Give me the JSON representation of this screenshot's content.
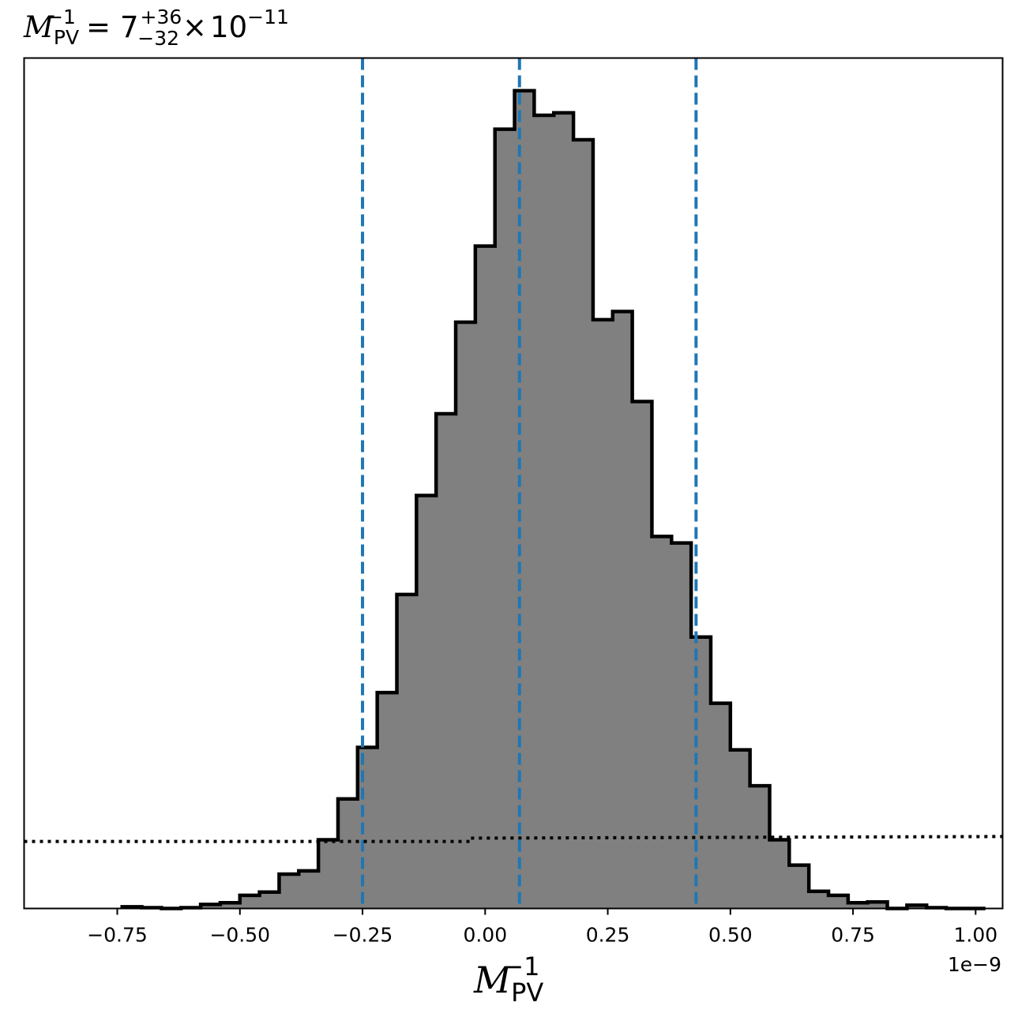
{
  "chart_data": {
    "type": "bar",
    "title": {
      "symbol": "M",
      "symbol_sub": "PV",
      "symbol_sup": "−1",
      "equals": "=",
      "value": "7",
      "upper_err": "+36",
      "lower_err": "−32",
      "times": "×",
      "base": "10",
      "exponent": "−11"
    },
    "xlabel": {
      "symbol": "M",
      "sub": "PV",
      "sup": "−1"
    },
    "ylabel": "",
    "x_offset_label": "1e−9",
    "x_units_scale": "1e-9",
    "xlim": [
      -0.94,
      1.055
    ],
    "ylim": [
      0,
      1.04
    ],
    "x_ticks": [
      -0.75,
      -0.5,
      -0.25,
      0.0,
      0.25,
      0.5,
      0.75,
      1.0
    ],
    "x_tick_labels": [
      "−0.75",
      "−0.50",
      "−0.25",
      "0.00",
      "0.25",
      "0.50",
      "0.75",
      "1.00"
    ],
    "y_ticks_shown": false,
    "histogram": {
      "bin_start": -0.74,
      "bin_width": 0.04,
      "values": [
        0.002,
        0.001,
        0.0,
        0.001,
        0.005,
        0.007,
        0.016,
        0.02,
        0.042,
        0.046,
        0.084,
        0.134,
        0.197,
        0.264,
        0.384,
        0.505,
        0.605,
        0.717,
        0.81,
        0.953,
        1.0,
        0.97,
        0.973,
        0.94,
        0.72,
        0.73,
        0.62,
        0.455,
        0.447,
        0.332,
        0.251,
        0.194,
        0.15,
        0.084,
        0.053,
        0.021,
        0.016,
        0.007,
        0.008,
        0.0,
        0.004,
        0.001,
        0.0,
        0.0
      ],
      "fill_color": "#808080",
      "edge_color": "#000000"
    },
    "quantile_lines": {
      "values": [
        -0.25,
        0.07,
        0.43
      ],
      "color": "#1f77b4",
      "style": "dashed"
    },
    "prior_line": {
      "points": [
        [
          -0.94,
          0.082
        ],
        [
          -0.03,
          0.082
        ],
        [
          -0.03,
          0.086
        ],
        [
          1.055,
          0.088
        ]
      ],
      "color": "#000000",
      "style": "dotted"
    },
    "grid": false,
    "legend": "none"
  }
}
